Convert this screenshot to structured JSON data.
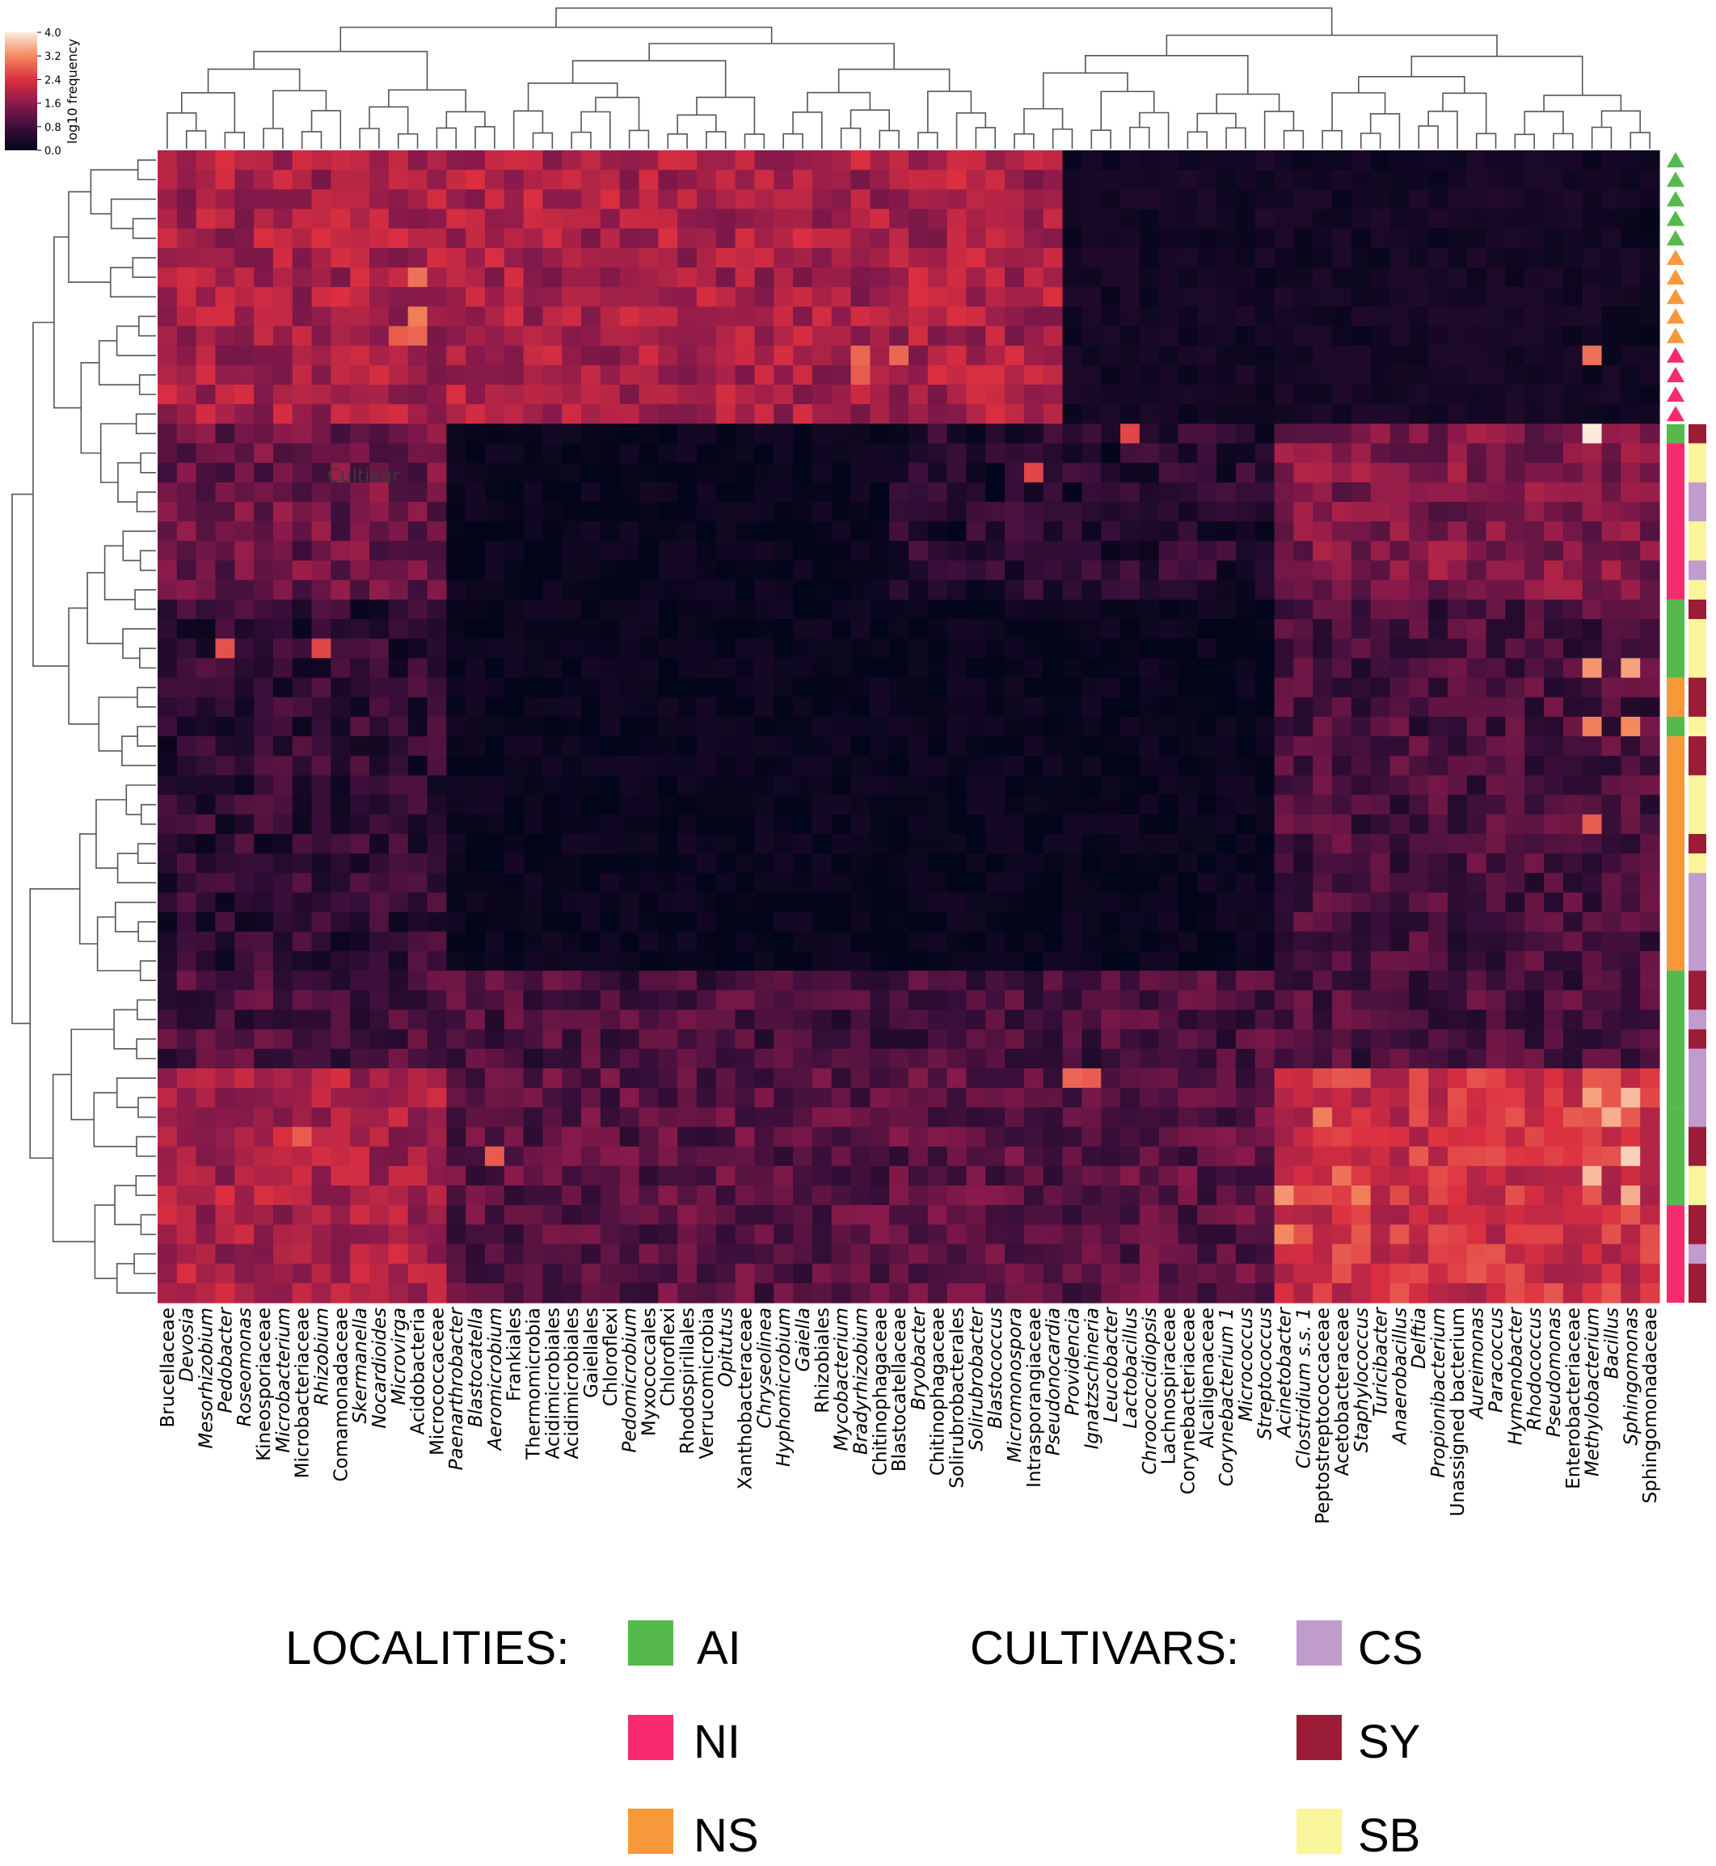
{
  "chart_data": {
    "type": "heatmap",
    "title": "",
    "xlabel": "",
    "ylabel": "",
    "colorbar": {
      "label": "log10 frequency",
      "ticks": [
        "0.0",
        "0.8",
        "1.6",
        "2.4",
        "3.2",
        "4.0"
      ],
      "range": [
        0.0,
        4.0
      ]
    },
    "columns": [
      {
        "name": "Brucellaceae",
        "italic": false
      },
      {
        "name": "Devosia",
        "italic": true
      },
      {
        "name": "Mesorhizobium",
        "italic": true
      },
      {
        "name": "Pedobacter",
        "italic": true
      },
      {
        "name": "Roseomonas",
        "italic": true
      },
      {
        "name": "Kineosporiaceae",
        "italic": false
      },
      {
        "name": "Microbacterium",
        "italic": true
      },
      {
        "name": "Microbacteriaceae",
        "italic": false
      },
      {
        "name": "Rhizobium",
        "italic": true
      },
      {
        "name": "Comamonadaceae",
        "italic": false
      },
      {
        "name": "Skermanella",
        "italic": true
      },
      {
        "name": "Nocardioides",
        "italic": true
      },
      {
        "name": "Microvirga",
        "italic": true
      },
      {
        "name": "Acidobacteria",
        "italic": false
      },
      {
        "name": "Micrococcaceae",
        "italic": false
      },
      {
        "name": "Paenarthrobacter",
        "italic": true
      },
      {
        "name": "Blastocatella",
        "italic": true
      },
      {
        "name": "Aeromicrobium",
        "italic": true
      },
      {
        "name": "Frankiales",
        "italic": false
      },
      {
        "name": "Thermomicrobia",
        "italic": false
      },
      {
        "name": "Acidimicrobiales",
        "italic": false
      },
      {
        "name": "Acidimicrobiales",
        "italic": false
      },
      {
        "name": "Gaiellales",
        "italic": false
      },
      {
        "name": "Chloroflexi",
        "italic": false
      },
      {
        "name": "Pedomicrobium",
        "italic": true
      },
      {
        "name": "Myxococcales",
        "italic": false
      },
      {
        "name": "Chloroflexi",
        "italic": false
      },
      {
        "name": "Rhodospirillales",
        "italic": false
      },
      {
        "name": "Verrucomicrobia",
        "italic": false
      },
      {
        "name": "Opitutus",
        "italic": true
      },
      {
        "name": "Xanthobacteraceae",
        "italic": false
      },
      {
        "name": "Chryseolinea",
        "italic": true
      },
      {
        "name": "Hyphomicrobium",
        "italic": true
      },
      {
        "name": "Gaiella",
        "italic": true
      },
      {
        "name": "Rhizobiales",
        "italic": false
      },
      {
        "name": "Mycobacterium",
        "italic": true
      },
      {
        "name": "Bradyrhizobium",
        "italic": true
      },
      {
        "name": "Chitinophagaceae",
        "italic": false
      },
      {
        "name": "Blastocatellaceae",
        "italic": false
      },
      {
        "name": "Bryobacter",
        "italic": true
      },
      {
        "name": "Chitinophagaceae",
        "italic": false
      },
      {
        "name": "Solirubrobacterales",
        "italic": false
      },
      {
        "name": "Solirubrobacter",
        "italic": true
      },
      {
        "name": "Blastococcus",
        "italic": true
      },
      {
        "name": "Micromonospora",
        "italic": true
      },
      {
        "name": "Intrasporangiaceae",
        "italic": false
      },
      {
        "name": "Pseudonocardia",
        "italic": true
      },
      {
        "name": "Providencia",
        "italic": true
      },
      {
        "name": "Ignatzschineria",
        "italic": true
      },
      {
        "name": "Leucobacter",
        "italic": true
      },
      {
        "name": "Lactobacillus",
        "italic": true
      },
      {
        "name": "Chroococcidiopsis",
        "italic": true
      },
      {
        "name": "Lachnospiraceae",
        "italic": false
      },
      {
        "name": "Corynebacteriaceae",
        "italic": false
      },
      {
        "name": "Alcaligenaceae",
        "italic": false
      },
      {
        "name": "Corynebacterium 1",
        "italic": true
      },
      {
        "name": "Micrococcus",
        "italic": true
      },
      {
        "name": "Streptococcus",
        "italic": true
      },
      {
        "name": "Acinetobacter",
        "italic": true
      },
      {
        "name": "Clostridium s.s. 1",
        "italic": true
      },
      {
        "name": "Peptostreptococcaceae",
        "italic": false
      },
      {
        "name": "Acetobacteraceae",
        "italic": false
      },
      {
        "name": "Staphylococcus",
        "italic": true
      },
      {
        "name": "Turicibacter",
        "italic": true
      },
      {
        "name": "Anaerobacillus",
        "italic": true
      },
      {
        "name": "Delftia",
        "italic": true
      },
      {
        "name": "Propionibacterium",
        "italic": true
      },
      {
        "name": "Unassigned bacterium",
        "italic": false
      },
      {
        "name": "Aureimonas",
        "italic": true
      },
      {
        "name": "Paracoccus",
        "italic": true
      },
      {
        "name": "Hymenobacter",
        "italic": true
      },
      {
        "name": "Rhodococcus",
        "italic": true
      },
      {
        "name": "Pseudomonas",
        "italic": true
      },
      {
        "name": "Enterobacteriaceae",
        "italic": false
      },
      {
        "name": "Methylobacterium",
        "italic": true
      },
      {
        "name": "Bacillus",
        "italic": true
      },
      {
        "name": "Sphingomonas",
        "italic": true
      },
      {
        "name": "Sphingomonadaceae",
        "italic": false
      }
    ],
    "row_count": 59,
    "row_groups": [
      {
        "rows": [
          0,
          13
        ],
        "cols": [
          0,
          46
        ],
        "level": 1.9
      },
      {
        "rows": [
          0,
          13
        ],
        "cols": [
          47,
          76
        ],
        "level": 0.25
      },
      {
        "rows": [
          14,
          22
        ],
        "cols": [
          0,
          14
        ],
        "level": 1.3
      },
      {
        "rows": [
          14,
          22
        ],
        "cols": [
          15,
          37
        ],
        "level": 0.1
      },
      {
        "rows": [
          14,
          22
        ],
        "cols": [
          38,
          57
        ],
        "level": 0.5
      },
      {
        "rows": [
          14,
          22
        ],
        "cols": [
          58,
          77
        ],
        "level": 1.5
      },
      {
        "rows": [
          23,
          41
        ],
        "cols": [
          0,
          14
        ],
        "level": 0.6
      },
      {
        "rows": [
          23,
          41
        ],
        "cols": [
          15,
          57
        ],
        "level": 0.1
      },
      {
        "rows": [
          23,
          41
        ],
        "cols": [
          58,
          77
        ],
        "level": 0.9
      },
      {
        "rows": [
          42,
          46
        ],
        "cols": [
          0,
          77
        ],
        "level": 0.9
      },
      {
        "rows": [
          47,
          59
        ],
        "cols": [
          0,
          14
        ],
        "level": 1.9
      },
      {
        "rows": [
          47,
          59
        ],
        "cols": [
          15,
          57
        ],
        "level": 1.1
      },
      {
        "rows": [
          47,
          59
        ],
        "cols": [
          58,
          77
        ],
        "level": 2.3
      }
    ],
    "hotspots": [
      {
        "row": 6,
        "col": 13,
        "value": 3.0
      },
      {
        "row": 8,
        "col": 13,
        "value": 3.1
      },
      {
        "row": 9,
        "col": 13,
        "value": 2.9
      },
      {
        "row": 9,
        "col": 12,
        "value": 2.8
      },
      {
        "row": 10,
        "col": 36,
        "value": 2.9
      },
      {
        "row": 10,
        "col": 38,
        "value": 2.9
      },
      {
        "row": 11,
        "col": 36,
        "value": 2.8
      },
      {
        "row": 10,
        "col": 74,
        "value": 3.0
      },
      {
        "row": 14,
        "col": 74,
        "value": 4.0
      },
      {
        "row": 14,
        "col": 50,
        "value": 2.6
      },
      {
        "row": 16,
        "col": 45,
        "value": 2.6
      },
      {
        "row": 25,
        "col": 8,
        "value": 2.6
      },
      {
        "row": 25,
        "col": 3,
        "value": 2.7
      },
      {
        "row": 26,
        "col": 74,
        "value": 3.3
      },
      {
        "row": 26,
        "col": 76,
        "value": 3.4
      },
      {
        "row": 29,
        "col": 74,
        "value": 3.1
      },
      {
        "row": 29,
        "col": 76,
        "value": 3.2
      },
      {
        "row": 34,
        "col": 74,
        "value": 2.8
      },
      {
        "row": 47,
        "col": 47,
        "value": 2.9
      },
      {
        "row": 47,
        "col": 48,
        "value": 2.8
      },
      {
        "row": 48,
        "col": 74,
        "value": 3.4
      },
      {
        "row": 48,
        "col": 76,
        "value": 3.6
      },
      {
        "row": 49,
        "col": 75,
        "value": 3.5
      },
      {
        "row": 51,
        "col": 76,
        "value": 3.8
      },
      {
        "row": 52,
        "col": 74,
        "value": 3.6
      },
      {
        "row": 53,
        "col": 76,
        "value": 3.5
      },
      {
        "row": 49,
        "col": 60,
        "value": 3.1
      },
      {
        "row": 52,
        "col": 61,
        "value": 3.0
      },
      {
        "row": 53,
        "col": 62,
        "value": 3.1
      },
      {
        "row": 55,
        "col": 58,
        "value": 3.2
      },
      {
        "row": 50,
        "col": 7,
        "value": 2.8
      },
      {
        "row": 51,
        "col": 17,
        "value": 2.8
      },
      {
        "row": 53,
        "col": 58,
        "value": 3.3
      }
    ],
    "row_annotations": {
      "marker_label": "Cultivar",
      "locality_markers": [
        {
          "rows": [
            0,
            4
          ],
          "locality": "AI"
        },
        {
          "rows": [
            5,
            9
          ],
          "locality": "NS"
        },
        {
          "rows": [
            10,
            13
          ],
          "locality": "NI"
        }
      ],
      "locality_bars": [
        {
          "rows": [
            14,
            14
          ],
          "locality": "AI"
        },
        {
          "rows": [
            15,
            22
          ],
          "locality": "NI"
        },
        {
          "rows": [
            23,
            26
          ],
          "locality": "AI"
        },
        {
          "rows": [
            27,
            28
          ],
          "locality": "NS"
        },
        {
          "rows": [
            29,
            29
          ],
          "locality": "AI"
        },
        {
          "rows": [
            30,
            41
          ],
          "locality": "NS"
        },
        {
          "rows": [
            42,
            48
          ],
          "locality": "AI"
        },
        {
          "rows": [
            49,
            53
          ],
          "locality": "AI"
        },
        {
          "rows": [
            54,
            58
          ],
          "locality": "NI"
        }
      ],
      "cultivar_bars": [
        {
          "rows": [
            14,
            14
          ],
          "cultivar": "SY"
        },
        {
          "rows": [
            15,
            16
          ],
          "cultivar": "SB"
        },
        {
          "rows": [
            17,
            18
          ],
          "cultivar": "CS"
        },
        {
          "rows": [
            19,
            20
          ],
          "cultivar": "SB"
        },
        {
          "rows": [
            21,
            21
          ],
          "cultivar": "CS"
        },
        {
          "rows": [
            22,
            22
          ],
          "cultivar": "SB"
        },
        {
          "rows": [
            23,
            23
          ],
          "cultivar": "SY"
        },
        {
          "rows": [
            24,
            26
          ],
          "cultivar": "SB"
        },
        {
          "rows": [
            27,
            28
          ],
          "cultivar": "SY"
        },
        {
          "rows": [
            29,
            29
          ],
          "cultivar": "SB"
        },
        {
          "rows": [
            30,
            31
          ],
          "cultivar": "SY"
        },
        {
          "rows": [
            32,
            34
          ],
          "cultivar": "SB"
        },
        {
          "rows": [
            35,
            35
          ],
          "cultivar": "SY"
        },
        {
          "rows": [
            36,
            36
          ],
          "cultivar": "SB"
        },
        {
          "rows": [
            37,
            41
          ],
          "cultivar": "CS"
        },
        {
          "rows": [
            42,
            43
          ],
          "cultivar": "SY"
        },
        {
          "rows": [
            44,
            44
          ],
          "cultivar": "CS"
        },
        {
          "rows": [
            45,
            45
          ],
          "cultivar": "SY"
        },
        {
          "rows": [
            46,
            49
          ],
          "cultivar": "CS"
        },
        {
          "rows": [
            50,
            51
          ],
          "cultivar": "SY"
        },
        {
          "rows": [
            52,
            53
          ],
          "cultivar": "SB"
        },
        {
          "rows": [
            54,
            55
          ],
          "cultivar": "SY"
        },
        {
          "rows": [
            56,
            56
          ],
          "cultivar": "CS"
        },
        {
          "rows": [
            57,
            58
          ],
          "cultivar": "SY"
        }
      ]
    }
  },
  "legend": {
    "localities_label": "LOCALITIES:",
    "cultivars_label": "CULTIVARS:",
    "localities": [
      {
        "code": "AI",
        "color": "#55b94c"
      },
      {
        "code": "NI",
        "color": "#f72a6d"
      },
      {
        "code": "NS",
        "color": "#f7983a"
      }
    ],
    "cultivars": [
      {
        "code": "CS",
        "color": "#c09ccd"
      },
      {
        "code": "SY",
        "color": "#9b1c36"
      },
      {
        "code": "SB",
        "color": "#f9f59a"
      }
    ]
  }
}
